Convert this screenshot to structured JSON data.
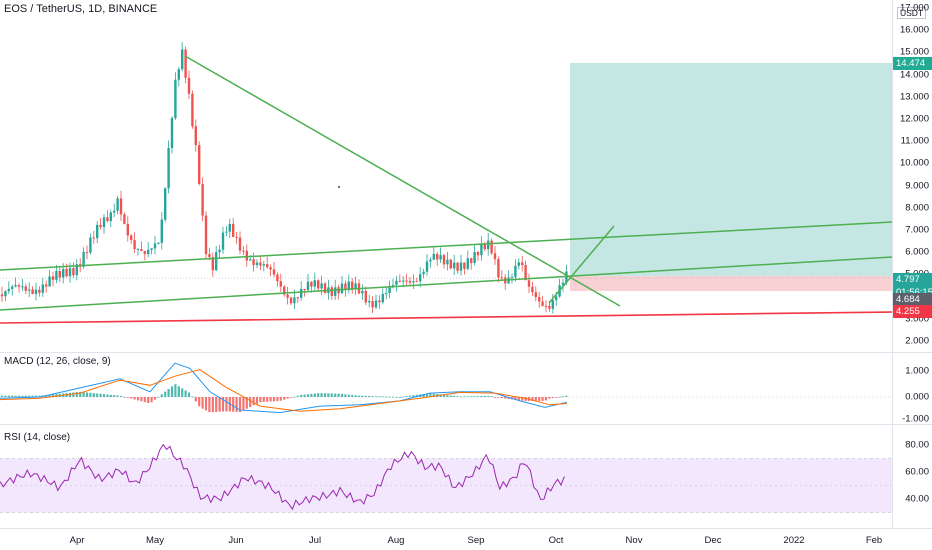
{
  "chart": {
    "symbol_title": "EOS / TetherUS, 1D, BINANCE",
    "currency": "USDT",
    "price_ticks": [
      "2.000",
      "3.000",
      "4.000",
      "5.000",
      "6.000",
      "7.000",
      "8.000",
      "9.000",
      "10.000",
      "11.000",
      "12.000",
      "13.000",
      "14.000",
      "15.000",
      "16.000",
      "17.000"
    ],
    "tags": {
      "target": "14.474",
      "last": "4.797",
      "countdown": "01:56:15",
      "entry": "4.684",
      "stop": "4.255"
    },
    "colors": {
      "up": "#26a69a",
      "down": "#ef5350",
      "trendline": "#4caf50",
      "support": "#f23645",
      "profit_zone": "#b2dfdb",
      "loss_zone": "#f8c8cc"
    }
  },
  "time_axis": {
    "labels": [
      "Apr",
      "May",
      "Jun",
      "Jul",
      "Aug",
      "Sep",
      "Oct",
      "Nov",
      "Dec",
      "2022",
      "Feb"
    ]
  },
  "macd": {
    "label": "MACD (12, 26, close, 9)",
    "ticks": [
      "1.000",
      "0.000",
      "-1.000"
    ],
    "colors": {
      "macd": "#2196f3",
      "signal": "#ff6d00"
    }
  },
  "rsi": {
    "label": "RSI (14, close)",
    "ticks": [
      "80.00",
      "60.00",
      "40.00"
    ],
    "color": "#9c27b0",
    "band_color": "#efe1fb"
  }
}
